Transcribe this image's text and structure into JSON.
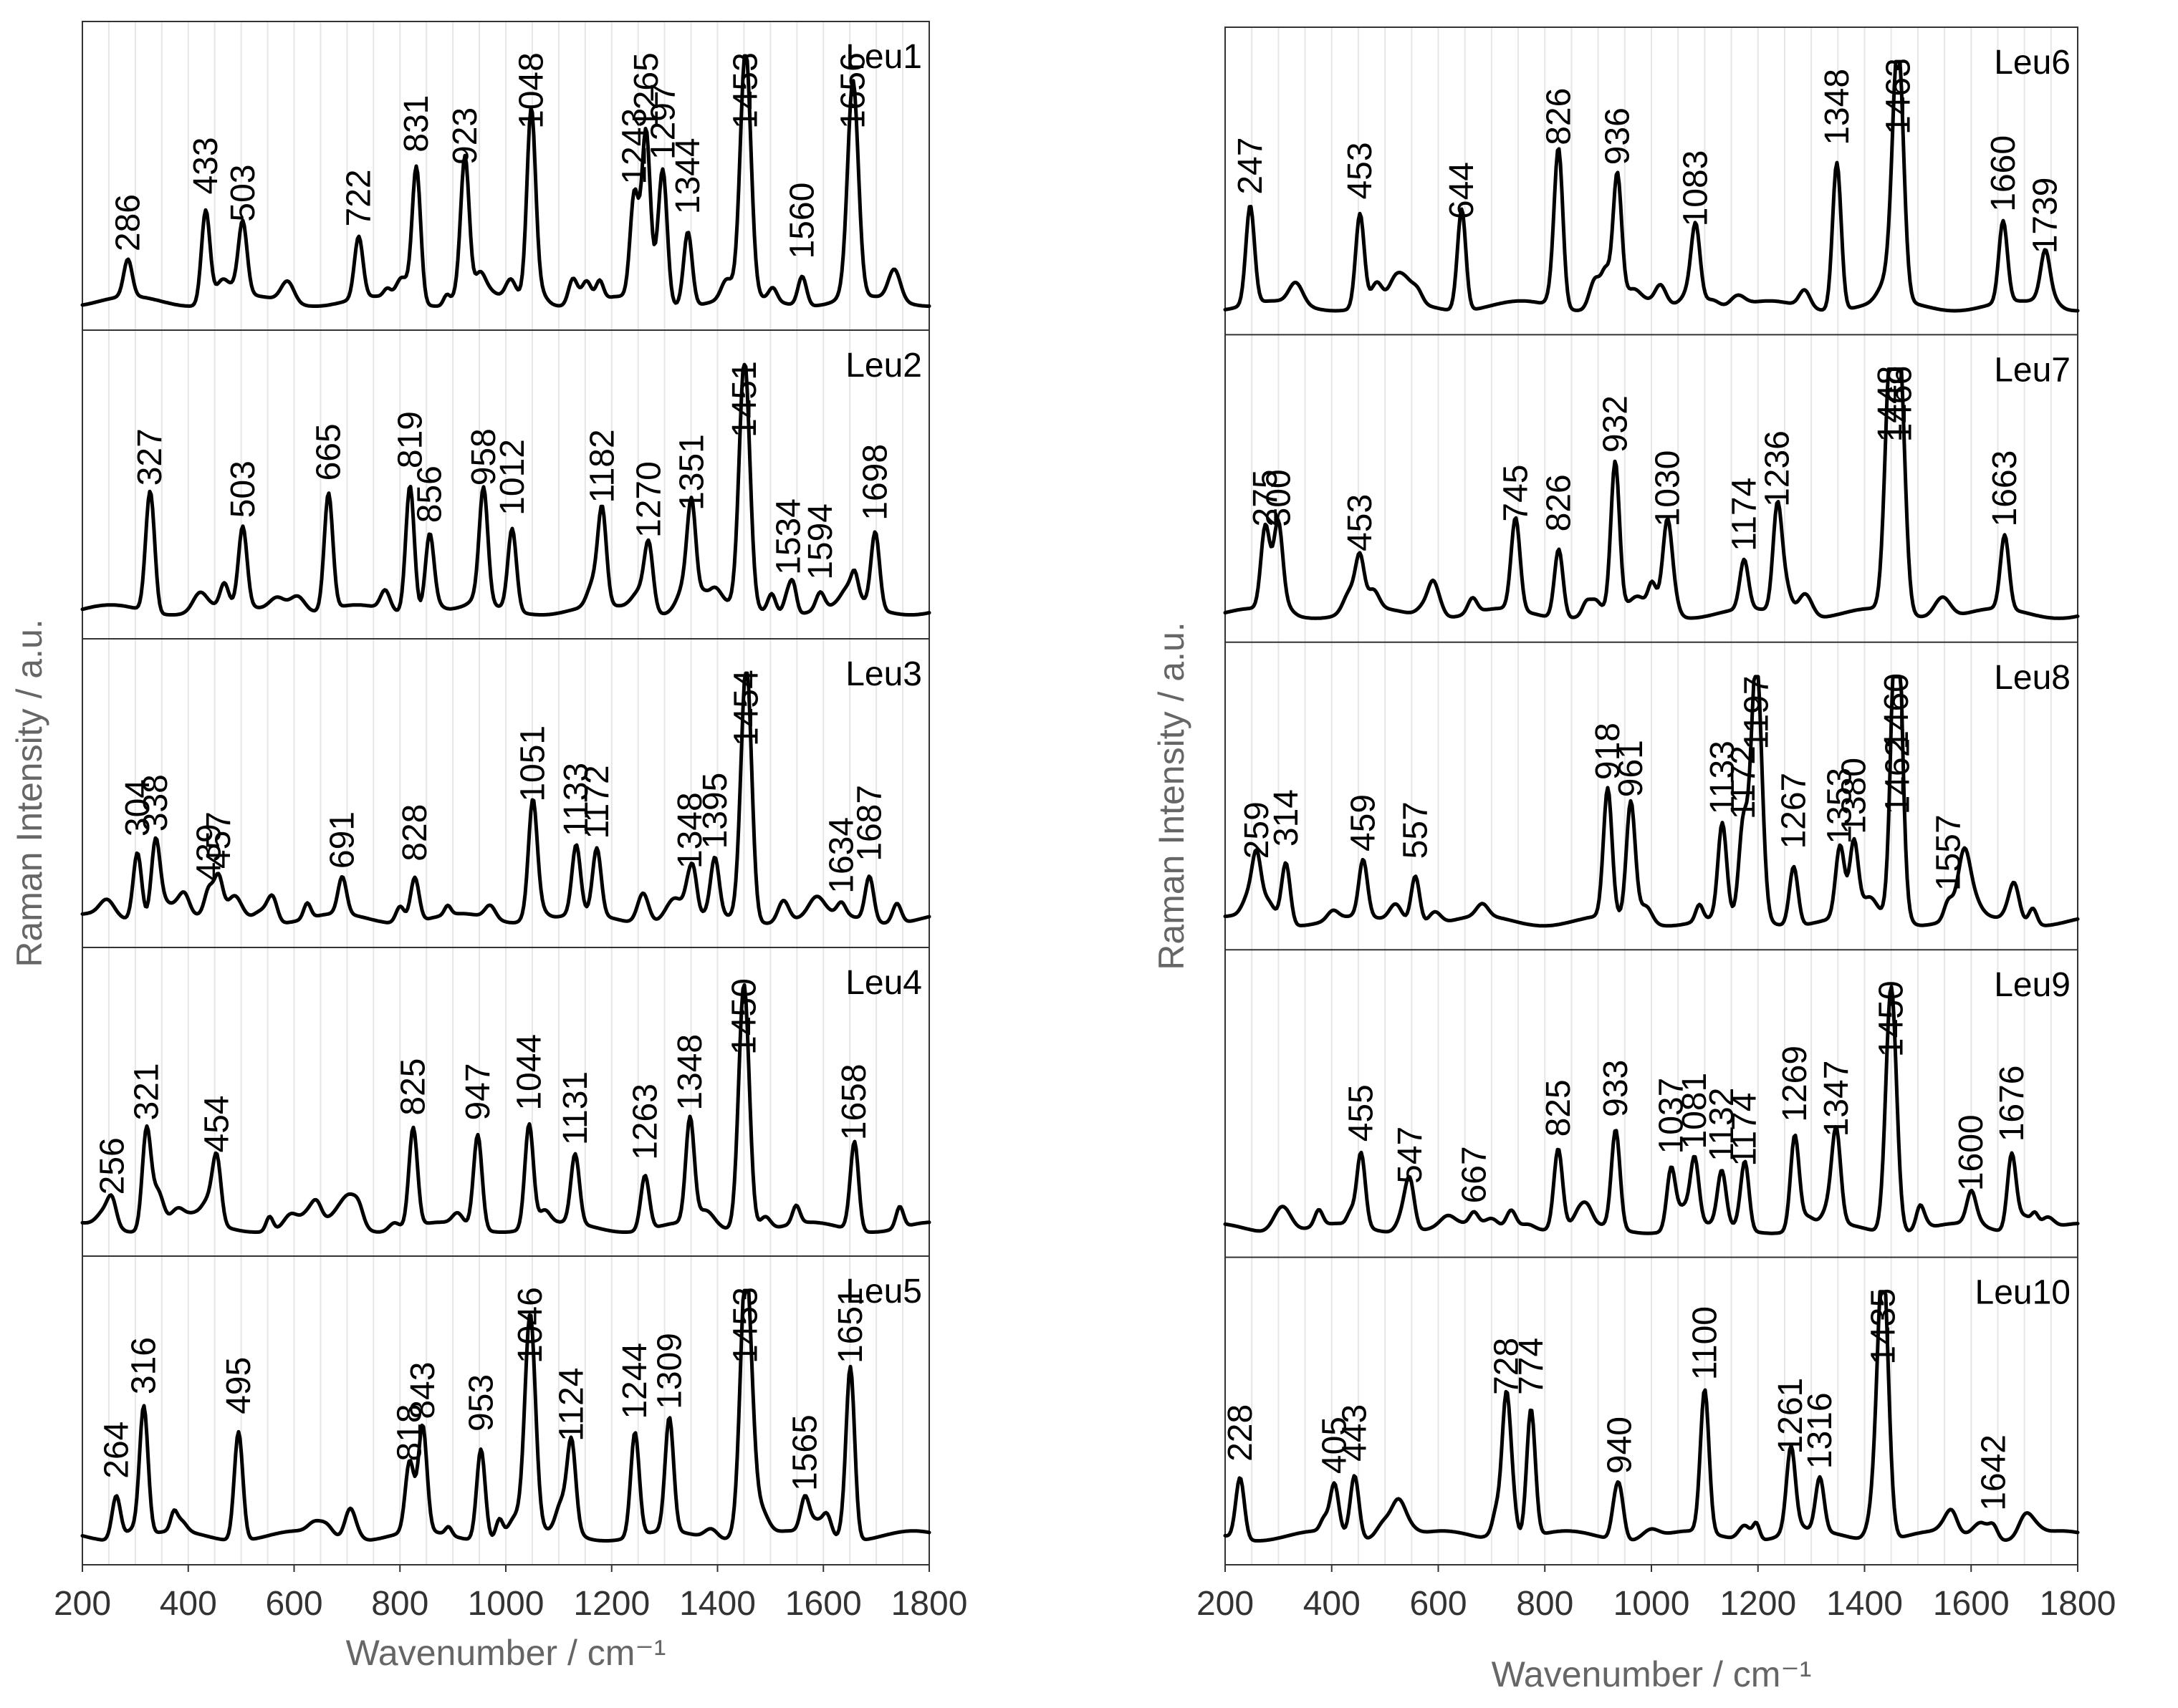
{
  "chart_data": [
    {
      "type": "line",
      "xlabel": "Wavenumber / cm⁻¹",
      "ylabel": "Raman Intensity / a.u.",
      "xlim": [
        200,
        1800
      ],
      "xticks": [
        "200",
        "400",
        "600",
        "800",
        "1000",
        "1200",
        "1400",
        "1600",
        "1800"
      ],
      "grid": true,
      "legend": "none",
      "series": [
        {
          "name": "Leu1",
          "peaks": [
            286,
            433,
            503,
            722,
            831,
            923,
            1048,
            1243,
            1265,
            1297,
            1344,
            1453,
            1560,
            1656
          ],
          "peak_labels": [
            "286",
            "433",
            "503",
            "722",
            "831",
            "923",
            "1048",
            "1243",
            "1265",
            "1297",
            "1344",
            "1453",
            "1560",
            "1656"
          ],
          "intensities": [
            0.15,
            0.38,
            0.27,
            0.25,
            0.55,
            0.5,
            0.72,
            0.42,
            0.68,
            0.52,
            0.3,
            1.0,
            0.12,
            0.85
          ]
        },
        {
          "name": "Leu2",
          "peaks": [
            327,
            503,
            665,
            819,
            856,
            958,
            1012,
            1182,
            1270,
            1351,
            1451,
            1534,
            1594,
            1698
          ],
          "peak_labels": [
            "327",
            "503",
            "665",
            "819",
            "856",
            "958",
            "1012",
            "1182",
            "1270",
            "1351",
            "1451",
            "1534",
            "1594",
            "1698"
          ],
          "intensities": [
            0.45,
            0.32,
            0.47,
            0.52,
            0.3,
            0.45,
            0.33,
            0.38,
            0.24,
            0.35,
            1.0,
            0.09,
            0.07,
            0.31
          ]
        },
        {
          "name": "Leu3",
          "peaks": [
            304,
            338,
            457,
            439,
            691,
            828,
            1051,
            1133,
            1172,
            1348,
            1395,
            1454,
            1634,
            1687
          ],
          "peak_labels": [
            "304",
            "338",
            "457",
            "439",
            "691",
            "828",
            "1051",
            "1133",
            "1172",
            "1348",
            "1395",
            "1454",
            "1634",
            "1687"
          ],
          "intensities": [
            0.28,
            0.3,
            0.15,
            0.1,
            0.15,
            0.18,
            0.42,
            0.28,
            0.27,
            0.15,
            0.23,
            1.0,
            0.05,
            0.18
          ]
        },
        {
          "name": "Leu4",
          "peaks": [
            321,
            454,
            256,
            825,
            947,
            1044,
            1131,
            1263,
            1348,
            1450,
            1658
          ],
          "peak_labels": [
            "321",
            "454",
            "256",
            "825",
            "947",
            "1044",
            "1131",
            "1263",
            "1348",
            "1450",
            "1658"
          ],
          "intensities": [
            0.38,
            0.25,
            0.08,
            0.4,
            0.38,
            0.42,
            0.28,
            0.22,
            0.42,
            1.0,
            0.3
          ]
        },
        {
          "name": "Leu5",
          "peaks": [
            264,
            316,
            495,
            818,
            843,
            953,
            1046,
            1124,
            1244,
            1309,
            1453,
            1565,
            1651
          ],
          "peak_labels": [
            "264",
            "316",
            "495",
            "818",
            "843",
            "953",
            "1046",
            "1124",
            "1244",
            "1309",
            "1453",
            "1565",
            "1651"
          ],
          "intensities": [
            0.18,
            0.52,
            0.44,
            0.25,
            0.42,
            0.37,
            0.88,
            0.33,
            0.42,
            0.46,
            0.96,
            0.13,
            0.7
          ]
        }
      ]
    },
    {
      "type": "line",
      "xlabel": "Wavenumber / cm⁻¹",
      "ylabel": "Raman Intensity / a.u.",
      "xlim": [
        200,
        1800
      ],
      "xticks": [
        "200",
        "400",
        "600",
        "800",
        "1000",
        "1200",
        "1400",
        "1600",
        "1800"
      ],
      "grid": true,
      "legend": "none",
      "series": [
        {
          "name": "Leu6",
          "peaks": [
            247,
            453,
            644,
            826,
            936,
            1083,
            1348,
            1463,
            1660,
            1739
          ],
          "peak_labels": [
            "247",
            "453",
            "644",
            "826",
            "936",
            "1083",
            "1348",
            "1463",
            "1660",
            "1739"
          ],
          "intensities": [
            0.4,
            0.38,
            0.3,
            0.6,
            0.52,
            0.27,
            0.6,
            1.0,
            0.33,
            0.16
          ]
        },
        {
          "name": "Leu7",
          "peaks": [
            275,
            300,
            453,
            745,
            826,
            932,
            1030,
            1174,
            1236,
            1448,
            1466,
            1663
          ],
          "peak_labels": [
            "275",
            "300",
            "453",
            "745",
            "826",
            "932",
            "1030",
            "1174",
            "1236",
            "1448",
            "1466",
            "1663"
          ],
          "intensities": [
            0.3,
            0.3,
            0.2,
            0.32,
            0.28,
            0.6,
            0.3,
            0.2,
            0.38,
            0.95,
            0.95,
            0.3
          ]
        },
        {
          "name": "Leu8",
          "peaks": [
            259,
            314,
            459,
            557,
            918,
            961,
            1133,
            1172,
            1197,
            1267,
            1353,
            1380,
            1460,
            1557,
            1462
          ],
          "peak_labels": [
            "259",
            "314",
            "459",
            "557",
            "918",
            "961",
            "1133",
            "1172",
            "1197",
            "1267",
            "1353",
            "1380",
            "1460",
            "1557",
            "1462"
          ],
          "intensities": [
            0.2,
            0.25,
            0.23,
            0.2,
            0.52,
            0.45,
            0.38,
            0.36,
            0.98,
            0.24,
            0.26,
            0.3,
            1.0,
            0.07,
            0.38
          ]
        },
        {
          "name": "Leu9",
          "peaks": [
            455,
            547,
            667,
            825,
            933,
            1037,
            1081,
            1132,
            1174,
            1269,
            1347,
            1450,
            1600,
            1676
          ],
          "peak_labels": [
            "455",
            "547",
            "667",
            "825",
            "933",
            "1037",
            "1081",
            "1132",
            "1174",
            "1269",
            "1347",
            "1450",
            "1600",
            "1676"
          ],
          "intensities": [
            0.3,
            0.13,
            0.05,
            0.32,
            0.4,
            0.25,
            0.27,
            0.22,
            0.2,
            0.38,
            0.32,
            1.0,
            0.1,
            0.3
          ]
        },
        {
          "name": "Leu10",
          "peaks": [
            228,
            405,
            443,
            728,
            774,
            940,
            1100,
            1261,
            1316,
            1435,
            1642
          ],
          "peak_labels": [
            "228",
            "405",
            "443",
            "728",
            "774",
            "940",
            "1100",
            "1261",
            "1316",
            "1435",
            "1642"
          ],
          "intensities": [
            0.25,
            0.2,
            0.25,
            0.52,
            0.52,
            0.2,
            0.58,
            0.28,
            0.22,
            1.0,
            0.05
          ]
        }
      ]
    }
  ]
}
